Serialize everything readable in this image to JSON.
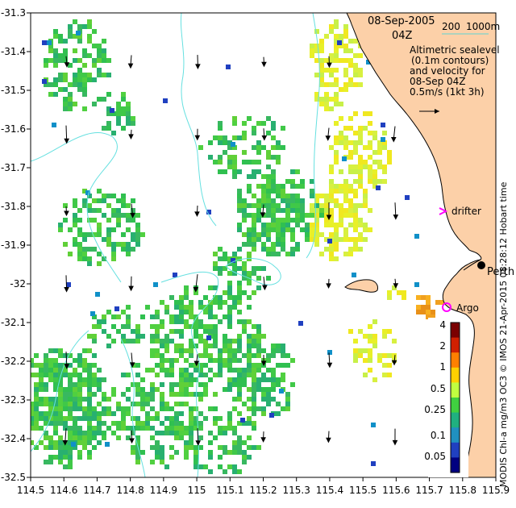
{
  "date_line": "08-Sep-2005",
  "time_line": "04Z",
  "depth_legend": {
    "label_200": "200",
    "label_1000": "1000m",
    "color": "#5fd3d3"
  },
  "info_lines": [
    "Altimetric sealevel",
    "(0.1m contours)",
    "and velocity for",
    "08-Sep 04Z",
    "0.5m/s (1kt 3h)"
  ],
  "markers": {
    "drifter_label": "drifter",
    "argo_label": "Argo",
    "perth_label": "Perth",
    "drifter_color": "#ff00ff",
    "argo_color": "#ff00ff"
  },
  "credit_text": "MODIS Chl-a mg/m3 OC3   © IMOS 21-Apr-2015 08:28:12 Hobart time",
  "x_axis": {
    "ticks": [
      "114.5",
      "114.6",
      "114.7",
      "114.8",
      "114.9",
      "115",
      "115.1",
      "115.2",
      "115.3",
      "115.4",
      "115.5",
      "115.6",
      "115.7",
      "115.8",
      "115.9"
    ]
  },
  "y_axis": {
    "ticks": [
      "-31.3",
      "-31.4",
      "-31.5",
      "-31.6",
      "-31.7",
      "-31.8",
      "-31.9",
      "-32",
      "-32.1",
      "-32.2",
      "-32.3",
      "-32.4",
      "-32.5"
    ]
  },
  "colorbar": {
    "labels": [
      "4",
      "2",
      "1",
      "0.5",
      "0.25",
      "0.1",
      "0.05"
    ],
    "colors": [
      "#7a0000",
      "#d02000",
      "#ff8000",
      "#ffd000",
      "#c0ff40",
      "#40d040",
      "#20b080",
      "#2090c0",
      "#2040c0",
      "#000080"
    ]
  },
  "colors": {
    "land": "#fcd0a8",
    "coast": "#000000",
    "contour": "#66e0e0"
  }
}
